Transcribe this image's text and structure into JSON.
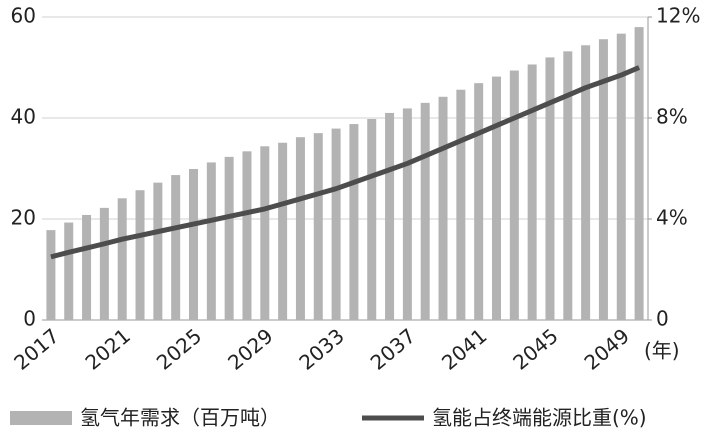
{
  "chart_data": {
    "type": "bar-line",
    "categories": [
      "2017",
      null,
      null,
      null,
      "2021",
      null,
      null,
      null,
      "2025",
      null,
      null,
      null,
      "2029",
      null,
      null,
      null,
      "2033",
      null,
      null,
      null,
      "2037",
      null,
      null,
      null,
      "2041",
      null,
      null,
      null,
      "2045",
      null,
      null,
      null,
      "2049",
      null
    ],
    "x_unit_label": "(年)",
    "series": [
      {
        "name": "氢气年需求（百万吨）",
        "type": "bar",
        "color": "#b3b3b3",
        "values": [
          17.8,
          19.3,
          20.8,
          22.2,
          24.1,
          25.7,
          27.2,
          28.7,
          29.9,
          31.2,
          32.3,
          33.4,
          34.4,
          35.1,
          36.2,
          37.0,
          37.9,
          38.8,
          39.8,
          41.0,
          41.9,
          43.0,
          44.2,
          45.6,
          46.9,
          48.2,
          49.4,
          50.6,
          52.0,
          53.2,
          54.4,
          55.6,
          56.7,
          58.0
        ]
      },
      {
        "name": "氢能占终端能源比重(%)",
        "type": "line",
        "axis": "y2",
        "color": "#4d4d4d",
        "values": [
          2.5,
          2.68,
          2.85,
          3.02,
          3.2,
          3.35,
          3.5,
          3.65,
          3.8,
          3.95,
          4.1,
          4.25,
          4.4,
          4.6,
          4.8,
          5.0,
          5.2,
          5.45,
          5.7,
          5.95,
          6.2,
          6.5,
          6.8,
          7.1,
          7.4,
          7.7,
          8.0,
          8.3,
          8.6,
          8.9,
          9.2,
          9.45,
          9.7,
          10.0
        ]
      }
    ],
    "ylim": [
      0,
      60
    ],
    "yticks": [
      0,
      20,
      40,
      60
    ],
    "y2lim": [
      0,
      12
    ],
    "y2ticks": [
      0,
      {
        "value": 4,
        "label": "4%"
      },
      {
        "value": 8,
        "label": "8%"
      },
      {
        "value": 12,
        "label": "12%"
      }
    ],
    "grid": true
  }
}
